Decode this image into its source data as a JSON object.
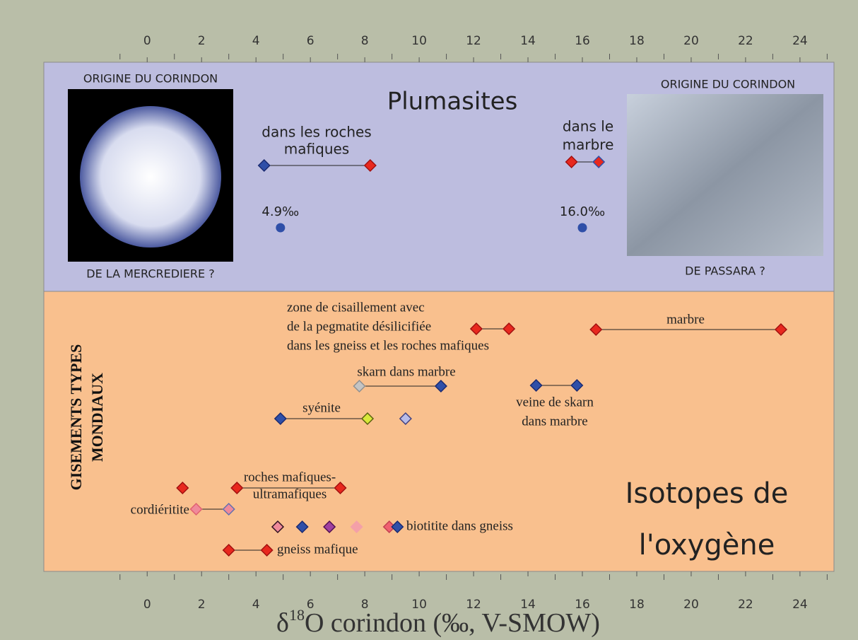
{
  "chart_data": {
    "type": "scatter",
    "xlim": [
      -3.8,
      25.25
    ],
    "xticks": [
      0,
      2,
      4,
      6,
      8,
      10,
      12,
      14,
      16,
      18,
      20,
      22,
      24
    ],
    "xminor": [
      -1,
      1,
      3,
      5,
      7,
      9,
      11,
      13,
      15,
      17,
      19,
      21,
      23,
      25
    ],
    "x_label": {
      "prefix": "δ",
      "sup": "18",
      "rest": "O corindon (‰, V-SMOW)"
    },
    "panels": [
      {
        "title": [
          "Plumasites"
        ],
        "color": "#bdbddf",
        "left_image": {
          "top": "ORIGINE DU CORINDON",
          "bottom": "DE LA MERCREDIERE ?"
        },
        "right_image": {
          "top": "ORIGINE DU CORINDON",
          "bottom": "DE PASSARA ?"
        },
        "groups": [
          {
            "label": [
              "dans les roches",
              "mafiques"
            ],
            "line": true,
            "points": [
              {
                "x": 4.3,
                "color": "#2f4fa8",
                "edge": "#1a2a70"
              },
              {
                "x": 8.2,
                "color": "#e8281e",
                "edge": "#a01010"
              }
            ]
          },
          {
            "label": [
              "dans le",
              "marbre"
            ],
            "line": true,
            "points": [
              {
                "x": 15.6,
                "color": "#e8281e",
                "edge": "#a01010"
              },
              {
                "x": 16.6,
                "color": "#e8281e",
                "edge": "#2f4fa8"
              }
            ]
          }
        ],
        "markers": {
          "values": [
            4.9,
            16.0
          ],
          "value_labels": [
            "4.9‰",
            "16.0‰"
          ],
          "color": "#2f4fa8"
        }
      },
      {
        "title": [
          "Isotopes de",
          "l'oxygène"
        ],
        "color": "#f9c08e",
        "side_label": [
          "GISEMENTS TYPES",
          "MONDIAUX"
        ],
        "groups": [
          {
            "label": [
              "zone de cisaillement avec",
              "de la pegmatite désilicifiée",
              "dans les gneiss et les roches mafiques"
            ],
            "line": true,
            "points": [
              {
                "x": 12.1,
                "color": "#e8281e",
                "edge": "#a01010"
              },
              {
                "x": 13.3,
                "color": "#e8281e",
                "edge": "#a01010"
              }
            ]
          },
          {
            "label": [
              "marbre"
            ],
            "line": true,
            "points": [
              {
                "x": 16.5,
                "color": "#e8281e",
                "edge": "#a01010"
              },
              {
                "x": 23.3,
                "color": "#e8281e",
                "edge": "#a01010"
              }
            ]
          },
          {
            "label": [
              "skarn dans marbre"
            ],
            "line": true,
            "points": [
              {
                "x": 7.8,
                "color": "#c4c4c4",
                "edge": "#909090"
              },
              {
                "x": 10.8,
                "color": "#2f4fa8",
                "edge": "#1a2a70"
              }
            ]
          },
          {
            "label": [
              "veine de skarn",
              "dans marbre"
            ],
            "line": true,
            "points": [
              {
                "x": 14.3,
                "color": "#2f4fa8",
                "edge": "#1a2a70"
              },
              {
                "x": 15.8,
                "color": "#2f4fa8",
                "edge": "#1a2a70"
              }
            ]
          },
          {
            "label": [
              "syénite"
            ],
            "line": true,
            "points": [
              {
                "x": 4.9,
                "color": "#2f4fa8",
                "edge": "#1a2a70"
              },
              {
                "x": 8.1,
                "color": "#d8e83a",
                "edge": "#5a6010"
              },
              {
                "x": 9.5,
                "color": "#b8bce8",
                "edge": "#404080"
              }
            ]
          },
          {
            "label": [
              "roches mafiques-",
              "ultramafiques"
            ],
            "line": true,
            "points": [
              {
                "x": 3.3,
                "color": "#e8281e",
                "edge": "#a01010"
              },
              {
                "x": 7.1,
                "color": "#e8281e",
                "edge": "#a01010"
              },
              {
                "x": 1.3,
                "color": "#e8281e",
                "edge": "#a01010"
              }
            ]
          },
          {
            "label": [
              "cordiéritite"
            ],
            "line": true,
            "points": [
              {
                "x": 1.8,
                "color": "#f08a9a",
                "edge": "#e06070"
              },
              {
                "x": 3.0,
                "color": "#f08a9a",
                "edge": "#6070b0"
              }
            ]
          },
          {
            "label": [
              "biotitite dans gneiss"
            ],
            "line": false,
            "points": [
              {
                "x": 4.8,
                "color": "#f08a9a",
                "edge": "#301020"
              },
              {
                "x": 5.7,
                "color": "#2f4fa8",
                "edge": "#1a2a70"
              },
              {
                "x": 6.7,
                "color": "#a040a0",
                "edge": "#501050"
              },
              {
                "x": 7.7,
                "color": "#f4a0a8",
                "edge": "#f4a0a8"
              },
              {
                "x": 8.9,
                "color": "#f06070",
                "edge": "#c04050"
              },
              {
                "x": 9.2,
                "color": "#2f4fa8",
                "edge": "#1a2a70"
              }
            ]
          },
          {
            "label": [
              "gneiss mafique"
            ],
            "line": true,
            "points": [
              {
                "x": 3.0,
                "color": "#e8281e",
                "edge": "#a01010"
              },
              {
                "x": 4.4,
                "color": "#e8281e",
                "edge": "#a01010"
              }
            ]
          }
        ]
      }
    ]
  }
}
